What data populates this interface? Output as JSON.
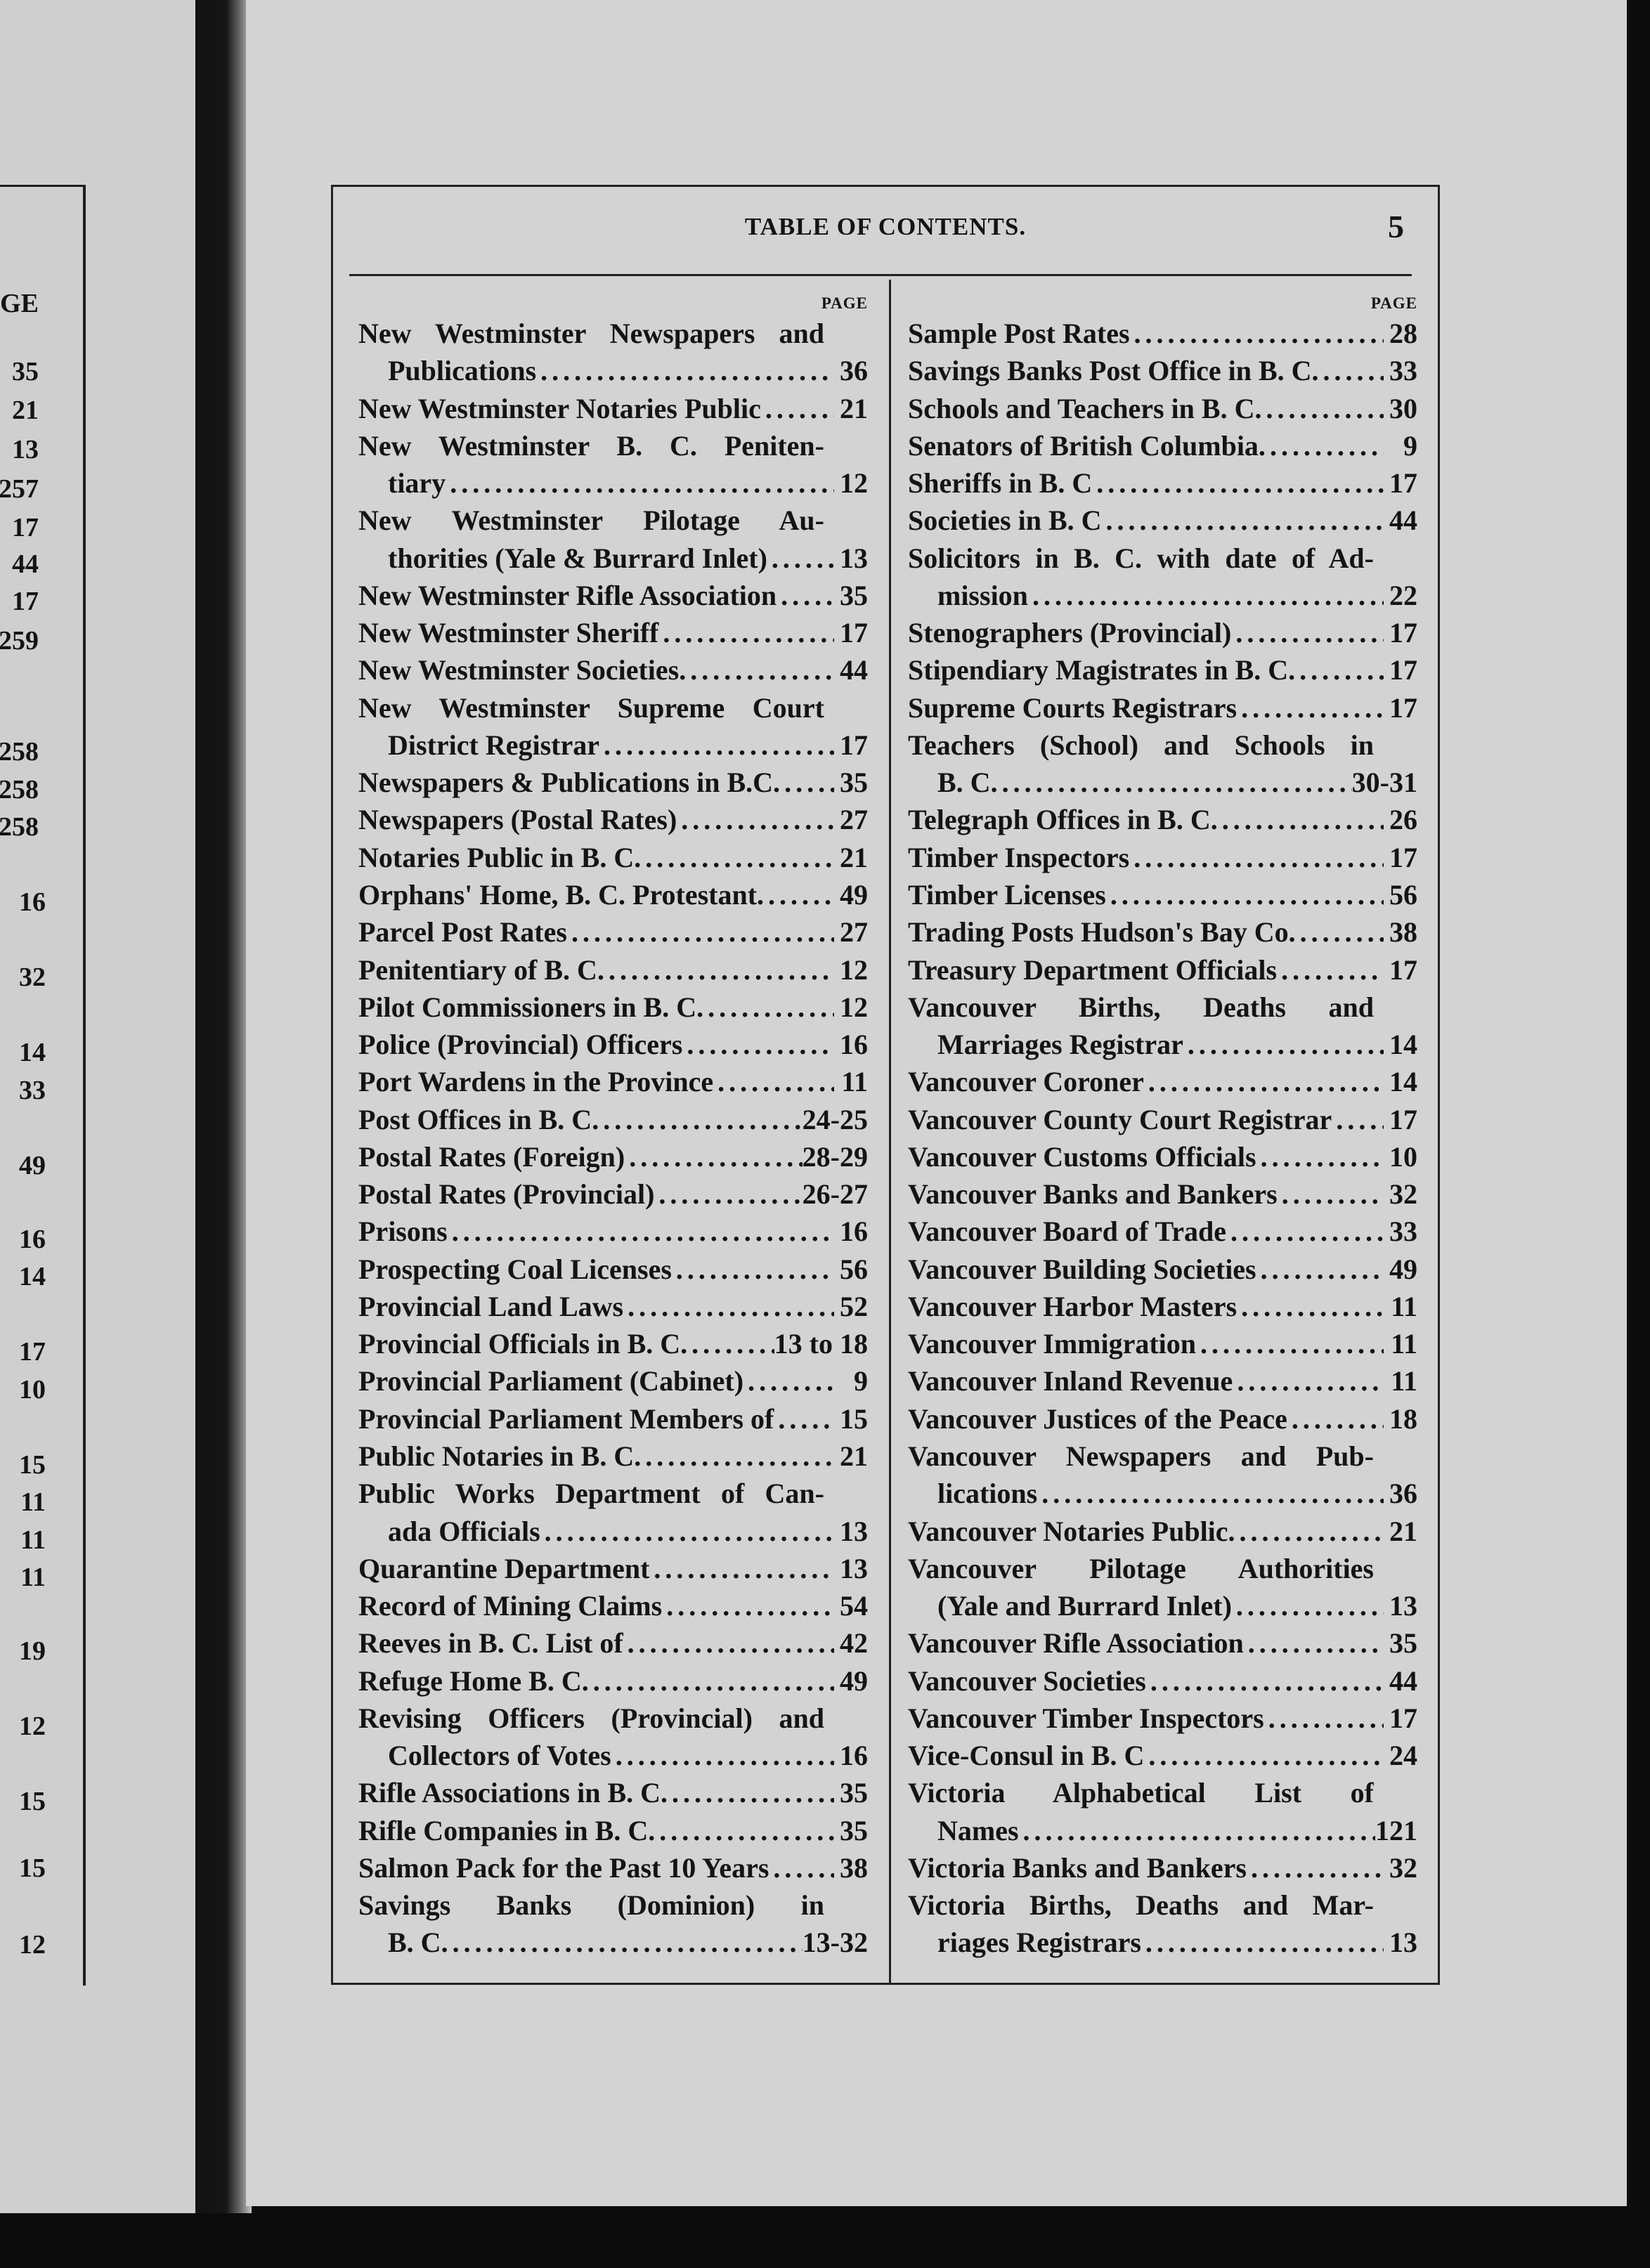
{
  "header": {
    "title": "TABLE OF CONTENTS.",
    "page_number": "5"
  },
  "columns": [
    {
      "page_label": "PAGE",
      "entries": [
        {
          "lines": [
            "New Westminster Newspapers and",
            "Publications"
          ],
          "page": "36"
        },
        {
          "lines": [
            "New Westminster Notaries Public"
          ],
          "page": "21"
        },
        {
          "lines": [
            "New Westminster B. C. Peniten-",
            "tiary"
          ],
          "page": "12"
        },
        {
          "lines": [
            "New Westminster Pilotage Au-",
            "thorities (Yale & Burrard Inlet)"
          ],
          "page": "13"
        },
        {
          "lines": [
            "New Westminster Rifle Association"
          ],
          "page": "35"
        },
        {
          "lines": [
            "New Westminster Sheriff"
          ],
          "page": "17"
        },
        {
          "lines": [
            "New Westminster Societies."
          ],
          "page": "44"
        },
        {
          "lines": [
            "New Westminster Supreme Court",
            "District Registrar"
          ],
          "page": "17"
        },
        {
          "lines": [
            "Newspapers & Publications in B.C."
          ],
          "page": "35"
        },
        {
          "lines": [
            "Newspapers (Postal Rates)"
          ],
          "page": "27"
        },
        {
          "lines": [
            "Notaries Public in B. C."
          ],
          "page": "21"
        },
        {
          "lines": [
            "Orphans' Home, B. C. Protestant."
          ],
          "page": "49"
        },
        {
          "lines": [
            "Parcel Post Rates"
          ],
          "page": "27"
        },
        {
          "lines": [
            "Penitentiary of B. C."
          ],
          "page": "12"
        },
        {
          "lines": [
            "Pilot Commissioners in B. C."
          ],
          "page": "12"
        },
        {
          "lines": [
            "Police (Provincial) Officers"
          ],
          "page": "16"
        },
        {
          "lines": [
            "Port Wardens in the Province"
          ],
          "page": "11"
        },
        {
          "lines": [
            "Post Offices in B. C."
          ],
          "page": "24-25"
        },
        {
          "lines": [
            "Postal Rates (Foreign)"
          ],
          "page": "28-29"
        },
        {
          "lines": [
            "Postal Rates (Provincial)"
          ],
          "page": "26-27"
        },
        {
          "lines": [
            "Prisons"
          ],
          "page": "16"
        },
        {
          "lines": [
            "Prospecting Coal Licenses"
          ],
          "page": "56"
        },
        {
          "lines": [
            "Provincial Land Laws"
          ],
          "page": "52"
        },
        {
          "lines": [
            "Provincial Officials in B. C."
          ],
          "page": "13 to 18"
        },
        {
          "lines": [
            "Provincial Parliament (Cabinet)"
          ],
          "page": "9"
        },
        {
          "lines": [
            "Provincial Parliament Members of"
          ],
          "page": "15"
        },
        {
          "lines": [
            "Public Notaries in B. C."
          ],
          "page": "21"
        },
        {
          "lines": [
            "Public Works Department of Can-",
            "ada Officials"
          ],
          "page": "13"
        },
        {
          "lines": [
            "Quarantine Department"
          ],
          "page": "13"
        },
        {
          "lines": [
            "Record of Mining Claims"
          ],
          "page": "54"
        },
        {
          "lines": [
            "Reeves in B. C. List of"
          ],
          "page": "42"
        },
        {
          "lines": [
            "Refuge Home B. C."
          ],
          "page": "49"
        },
        {
          "lines": [
            "Revising Officers (Provincial) and",
            "Collectors of Votes"
          ],
          "page": "16"
        },
        {
          "lines": [
            "Rifle Associations in B. C."
          ],
          "page": "35"
        },
        {
          "lines": [
            "Rifle Companies in B. C."
          ],
          "page": "35"
        },
        {
          "lines": [
            "Salmon Pack for the Past 10 Years"
          ],
          "page": "38"
        },
        {
          "lines": [
            "Savings Banks (Dominion) in",
            "B. C."
          ],
          "page": "13-32"
        }
      ]
    },
    {
      "page_label": "PAGE",
      "entries": [
        {
          "lines": [
            "Sample Post Rates"
          ],
          "page": "28"
        },
        {
          "lines": [
            "Savings Banks Post Office in B. C."
          ],
          "page": "33"
        },
        {
          "lines": [
            "Schools and Teachers in B. C."
          ],
          "page": "30"
        },
        {
          "lines": [
            "Senators of British Columbia."
          ],
          "page": "9"
        },
        {
          "lines": [
            "Sheriffs in B. C"
          ],
          "page": "17"
        },
        {
          "lines": [
            "Societies in B. C"
          ],
          "page": "44"
        },
        {
          "lines": [
            "Solicitors in B. C. with date of Ad-",
            "mission"
          ],
          "page": "22"
        },
        {
          "lines": [
            "Stenographers (Provincial)"
          ],
          "page": "17"
        },
        {
          "lines": [
            "Stipendiary Magistrates in B. C."
          ],
          "page": "17"
        },
        {
          "lines": [
            "Supreme Courts Registrars"
          ],
          "page": "17"
        },
        {
          "lines": [
            "Teachers (School) and Schools in",
            "B. C."
          ],
          "page": "30-31"
        },
        {
          "lines": [
            "Telegraph Offices in B. C."
          ],
          "page": "26"
        },
        {
          "lines": [
            "Timber Inspectors"
          ],
          "page": "17"
        },
        {
          "lines": [
            "Timber Licenses"
          ],
          "page": "56"
        },
        {
          "lines": [
            "Trading Posts Hudson's Bay Co."
          ],
          "page": "38"
        },
        {
          "lines": [
            "Treasury Department Officials"
          ],
          "page": "17"
        },
        {
          "lines": [
            "Vancouver Births, Deaths and",
            "Marriages Registrar"
          ],
          "page": "14"
        },
        {
          "lines": [
            "Vancouver Coroner"
          ],
          "page": "14"
        },
        {
          "lines": [
            "Vancouver County Court Registrar"
          ],
          "page": "17"
        },
        {
          "lines": [
            "Vancouver Customs Officials"
          ],
          "page": "10"
        },
        {
          "lines": [
            "Vancouver Banks and Bankers"
          ],
          "page": "32"
        },
        {
          "lines": [
            "Vancouver Board of Trade"
          ],
          "page": "33"
        },
        {
          "lines": [
            "Vancouver Building Societies"
          ],
          "page": "49"
        },
        {
          "lines": [
            "Vancouver Harbor Masters"
          ],
          "page": "11"
        },
        {
          "lines": [
            "Vancouver Immigration"
          ],
          "page": "11"
        },
        {
          "lines": [
            "Vancouver Inland Revenue"
          ],
          "page": "11"
        },
        {
          "lines": [
            "Vancouver Justices of the Peace"
          ],
          "page": "18"
        },
        {
          "lines": [
            "Vancouver Newspapers and Pub-",
            "lications"
          ],
          "page": "36"
        },
        {
          "lines": [
            "Vancouver Notaries Public."
          ],
          "page": "21"
        },
        {
          "lines": [
            "Vancouver Pilotage Authorities",
            "(Yale and Burrard Inlet)"
          ],
          "page": "13"
        },
        {
          "lines": [
            "Vancouver Rifle Association"
          ],
          "page": "35"
        },
        {
          "lines": [
            "Vancouver Societies"
          ],
          "page": "44"
        },
        {
          "lines": [
            "Vancouver Timber Inspectors"
          ],
          "page": "17"
        },
        {
          "lines": [
            "Vice-Consul in B. C"
          ],
          "page": "24"
        },
        {
          "lines": [
            "Victoria Alphabetical List of",
            "Names"
          ],
          "page": "121"
        },
        {
          "lines": [
            "Victoria Banks and Bankers"
          ],
          "page": "32"
        },
        {
          "lines": [
            "Victoria Births, Deaths and Mar-",
            "riages Registrars"
          ],
          "page": "13"
        }
      ]
    }
  ],
  "previous_page_fragment": [
    "GE",
    "35",
    "21",
    "13",
    "257",
    "17",
    "44",
    "17",
    "259",
    "258",
    "258",
    "258",
    "16",
    "32",
    "14",
    "33",
    "49",
    "16",
    "14",
    "17",
    "10",
    "15",
    "11",
    "11",
    "11",
    "19",
    "12",
    "15",
    "15",
    "12"
  ]
}
